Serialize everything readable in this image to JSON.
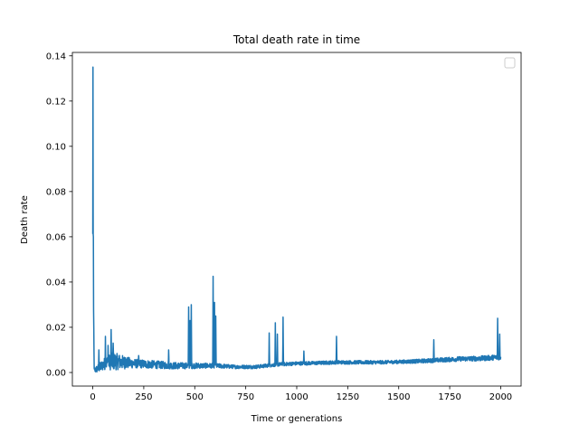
{
  "chart_data": {
    "type": "line",
    "title": "Total death rate in time",
    "xlabel": "Time or generations",
    "ylabel": "Death rate",
    "xlim": [
      -100,
      2100
    ],
    "ylim": [
      -0.006,
      0.1415
    ],
    "xticks": [
      0,
      250,
      500,
      750,
      1000,
      1250,
      1500,
      1750,
      2000
    ],
    "xtick_labels": [
      "0",
      "250",
      "500",
      "750",
      "1000",
      "1250",
      "1500",
      "1750",
      "2000"
    ],
    "yticks": [
      0.0,
      0.02,
      0.04,
      0.06,
      0.08,
      0.1,
      0.12,
      0.14
    ],
    "ytick_labels": [
      "0.00",
      "0.02",
      "0.04",
      "0.06",
      "0.08",
      "0.10",
      "0.12",
      "0.14"
    ],
    "grid": false,
    "legend": "upper right (empty)",
    "series": [
      {
        "color": "#1f77b4",
        "baseline": [
          [
            0,
            0.0006
          ],
          [
            30,
            0.002
          ],
          [
            60,
            0.004
          ],
          [
            100,
            0.005
          ],
          [
            150,
            0.0045
          ],
          [
            200,
            0.004
          ],
          [
            300,
            0.0035
          ],
          [
            400,
            0.003
          ],
          [
            500,
            0.003
          ],
          [
            600,
            0.003
          ],
          [
            700,
            0.0025
          ],
          [
            800,
            0.0025
          ],
          [
            850,
            0.003
          ],
          [
            900,
            0.0035
          ],
          [
            1000,
            0.004
          ],
          [
            1100,
            0.0042
          ],
          [
            1200,
            0.0045
          ],
          [
            1300,
            0.0045
          ],
          [
            1400,
            0.0045
          ],
          [
            1500,
            0.0047
          ],
          [
            1600,
            0.005
          ],
          [
            1700,
            0.0055
          ],
          [
            1800,
            0.006
          ],
          [
            1900,
            0.0062
          ],
          [
            2000,
            0.0068
          ]
        ],
        "noise_amplitude": [
          [
            0,
            0.001
          ],
          [
            100,
            0.004
          ],
          [
            200,
            0.002
          ],
          [
            400,
            0.0015
          ],
          [
            700,
            0.0008
          ],
          [
            1000,
            0.0008
          ],
          [
            1500,
            0.0008
          ],
          [
            2000,
            0.0012
          ]
        ],
        "spikes": [
          [
            1,
            0.135
          ],
          [
            3,
            0.06
          ],
          [
            5,
            0.02
          ],
          [
            30,
            0.01
          ],
          [
            62,
            0.016
          ],
          [
            75,
            0.012
          ],
          [
            90,
            0.019
          ],
          [
            100,
            0.013
          ],
          [
            130,
            0.006
          ],
          [
            160,
            0.0065
          ],
          [
            225,
            0.0075
          ],
          [
            372,
            0.01
          ],
          [
            470,
            0.029
          ],
          [
            477,
            0.023
          ],
          [
            483,
            0.03
          ],
          [
            590,
            0.0425
          ],
          [
            597,
            0.031
          ],
          [
            603,
            0.025
          ],
          [
            865,
            0.0175
          ],
          [
            895,
            0.022
          ],
          [
            905,
            0.017
          ],
          [
            933,
            0.0245
          ],
          [
            1035,
            0.0095
          ],
          [
            1195,
            0.016
          ],
          [
            1672,
            0.0145
          ],
          [
            1985,
            0.024
          ],
          [
            1995,
            0.017
          ]
        ]
      }
    ]
  }
}
